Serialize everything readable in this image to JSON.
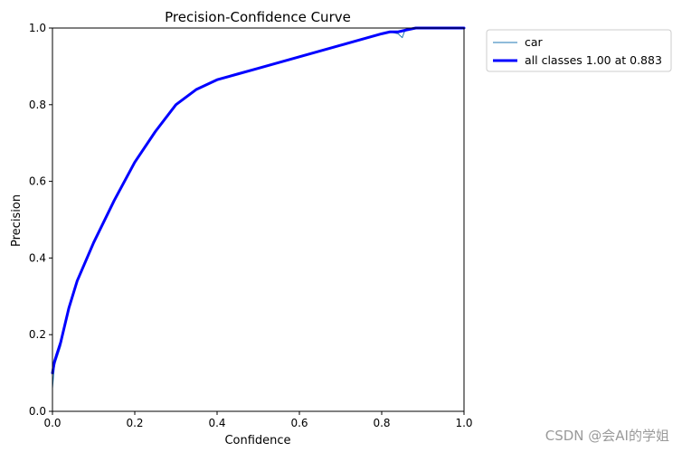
{
  "chart_data": {
    "type": "line",
    "title": "Precision-Confidence Curve",
    "xlabel": "Confidence",
    "ylabel": "Precision",
    "xlim": [
      0,
      1
    ],
    "ylim": [
      0,
      1
    ],
    "xticks": [
      "0.0",
      "0.2",
      "0.4",
      "0.6",
      "0.8",
      "1.0"
    ],
    "yticks": [
      "0.0",
      "0.2",
      "0.4",
      "0.6",
      "0.8",
      "1.0"
    ],
    "legend_position": "outside-top-right",
    "series": [
      {
        "name": "car",
        "color": "#1f77b4",
        "style": "thin",
        "x": [
          0.0,
          0.005,
          0.02,
          0.04,
          0.06,
          0.1,
          0.15,
          0.2,
          0.25,
          0.3,
          0.35,
          0.4,
          0.45,
          0.5,
          0.55,
          0.6,
          0.65,
          0.7,
          0.75,
          0.8,
          0.82,
          0.84,
          0.85,
          0.855,
          0.86,
          0.87,
          0.88,
          0.9,
          1.0
        ],
        "y": [
          0.06,
          0.12,
          0.17,
          0.27,
          0.34,
          0.44,
          0.55,
          0.65,
          0.73,
          0.8,
          0.84,
          0.865,
          0.88,
          0.895,
          0.91,
          0.925,
          0.94,
          0.955,
          0.97,
          0.985,
          0.99,
          0.985,
          0.975,
          0.99,
          0.995,
          1.0,
          1.0,
          1.0,
          1.0
        ]
      },
      {
        "name": "all classes 1.00 at 0.883",
        "color": "#0000ff",
        "style": "thick",
        "x": [
          0.0,
          0.005,
          0.02,
          0.04,
          0.06,
          0.1,
          0.15,
          0.2,
          0.25,
          0.3,
          0.35,
          0.4,
          0.45,
          0.5,
          0.55,
          0.6,
          0.65,
          0.7,
          0.75,
          0.8,
          0.82,
          0.84,
          0.86,
          0.883,
          0.9,
          1.0
        ],
        "y": [
          0.1,
          0.13,
          0.18,
          0.27,
          0.34,
          0.44,
          0.55,
          0.65,
          0.73,
          0.8,
          0.84,
          0.865,
          0.88,
          0.895,
          0.91,
          0.925,
          0.94,
          0.955,
          0.97,
          0.985,
          0.99,
          0.99,
          0.995,
          1.0,
          1.0,
          1.0
        ]
      }
    ]
  },
  "watermark": "CSDN @会AI的学姐"
}
